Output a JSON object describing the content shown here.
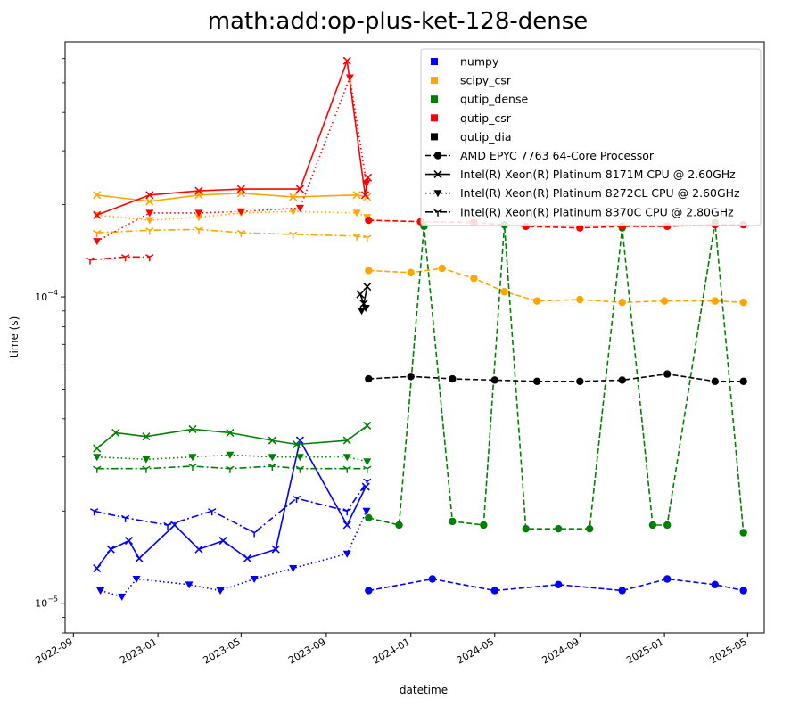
{
  "chart_data": {
    "type": "line",
    "title": "math:add:op-plus-ket-128-dense",
    "xlabel": "datetime",
    "ylabel": "time (s)",
    "y_scale": "log",
    "ylim": [
      8e-06,
      0.00068
    ],
    "xlim": [
      "2022-08-20",
      "2025-05-25"
    ],
    "x_ticks": [
      "2022-09",
      "2023-01",
      "2023-05",
      "2023-09",
      "2024-01",
      "2024-05",
      "2024-09",
      "2025-01",
      "2025-05"
    ],
    "y_ticks": [
      {
        "value": 1e-05,
        "label": "10",
        "exp": "−5"
      },
      {
        "value": 0.0001,
        "label": "10",
        "exp": "−4"
      }
    ],
    "grid": false,
    "legend_position": "top-right",
    "colors": {
      "numpy": "#0000ff",
      "scipy_csr": "#ffa500",
      "qutip_dense": "#008000",
      "qutip_csr": "#ff0000",
      "qutip_dia": "#000000"
    },
    "legend": [
      {
        "label": "numpy",
        "kind": "color",
        "color": "#0000ff"
      },
      {
        "label": "scipy_csr",
        "kind": "color",
        "color": "#ffa500"
      },
      {
        "label": "qutip_dense",
        "kind": "color",
        "color": "#008000"
      },
      {
        "label": "qutip_csr",
        "kind": "color",
        "color": "#ff0000"
      },
      {
        "label": "qutip_dia",
        "kind": "color",
        "color": "#000000"
      },
      {
        "label": "AMD EPYC 7763 64-Core Processor",
        "kind": "style",
        "marker": "o",
        "dash": "6,3"
      },
      {
        "label": "Intel(R) Xeon(R) Platinum 8171M CPU @ 2.60GHz",
        "kind": "style",
        "marker": "x",
        "dash": ""
      },
      {
        "label": "Intel(R) Xeon(R) Platinum 8272CL CPU @ 2.60GHz",
        "kind": "style",
        "marker": "v",
        "dash": "1.5,3"
      },
      {
        "label": "Intel(R) Xeon(R) Platinum 8370C CPU @ 2.80GHz",
        "kind": "style",
        "marker": "1",
        "dash": "8,3,2,3"
      }
    ],
    "series": [
      {
        "library": "numpy",
        "cpu": "Intel(R) Xeon(R) Platinum 8171M CPU @ 2.60GHz",
        "x": [
          "2022-10-05",
          "2022-10-25",
          "2022-11-20",
          "2022-12-05",
          "2023-01-25",
          "2023-03-01",
          "2023-04-05",
          "2023-05-10",
          "2023-06-20",
          "2023-07-25",
          "2023-10-01",
          "2023-10-28"
        ],
        "y": [
          1.3e-05,
          1.5e-05,
          1.6e-05,
          1.4e-05,
          1.8e-05,
          1.5e-05,
          1.6e-05,
          1.4e-05,
          1.5e-05,
          3.4e-05,
          1.8e-05,
          2.4e-05
        ]
      },
      {
        "library": "numpy",
        "cpu": "Intel(R) Xeon(R) Platinum 8272CL CPU @ 2.60GHz",
        "x": [
          "2022-10-10",
          "2022-11-10",
          "2022-12-01",
          "2023-02-15",
          "2023-04-01",
          "2023-05-20",
          "2023-07-15",
          "2023-10-01",
          "2023-10-29"
        ],
        "y": [
          1.1e-05,
          1.05e-05,
          1.2e-05,
          1.15e-05,
          1.1e-05,
          1.2e-05,
          1.3e-05,
          1.45e-05,
          2e-05
        ]
      },
      {
        "library": "numpy",
        "cpu": "Intel(R) Xeon(R) Platinum 8370C CPU @ 2.80GHz",
        "x": [
          "2022-10-01",
          "2022-11-15",
          "2023-01-15",
          "2023-03-20",
          "2023-05-20",
          "2023-07-20",
          "2023-10-01",
          "2023-10-30"
        ],
        "y": [
          2e-05,
          1.9e-05,
          1.8e-05,
          2e-05,
          1.7e-05,
          2.2e-05,
          2e-05,
          2.5e-05
        ]
      },
      {
        "library": "numpy",
        "cpu": "AMD EPYC 7763 64-Core Processor",
        "x": [
          "2023-11-01",
          "2024-02-01",
          "2024-05-01",
          "2024-08-01",
          "2024-11-01",
          "2025-01-05",
          "2025-03-15",
          "2025-04-25"
        ],
        "y": [
          1.1e-05,
          1.2e-05,
          1.1e-05,
          1.15e-05,
          1.1e-05,
          1.2e-05,
          1.15e-05,
          1.1e-05
        ]
      },
      {
        "library": "scipy_csr",
        "cpu": "Intel(R) Xeon(R) Platinum 8171M CPU @ 2.60GHz",
        "x": [
          "2022-10-05",
          "2022-12-20",
          "2023-03-01",
          "2023-05-01",
          "2023-07-15",
          "2023-10-15",
          "2023-10-30"
        ],
        "y": [
          0.000215,
          0.000205,
          0.000215,
          0.000218,
          0.000212,
          0.000215,
          0.000212
        ]
      },
      {
        "library": "scipy_csr",
        "cpu": "Intel(R) Xeon(R) Platinum 8272CL CPU @ 2.60GHz",
        "x": [
          "2022-10-05",
          "2022-12-20",
          "2023-03-01",
          "2023-05-01",
          "2023-07-15",
          "2023-10-15",
          "2023-10-30"
        ],
        "y": [
          0.000185,
          0.000178,
          0.000182,
          0.000188,
          0.00019,
          0.000188,
          0.000182
        ]
      },
      {
        "library": "scipy_csr",
        "cpu": "Intel(R) Xeon(R) Platinum 8370C CPU @ 2.80GHz",
        "x": [
          "2022-10-05",
          "2022-12-20",
          "2023-03-01",
          "2023-05-01",
          "2023-07-15",
          "2023-10-15",
          "2023-10-30"
        ],
        "y": [
          0.000162,
          0.000165,
          0.000166,
          0.000162,
          0.00016,
          0.000158,
          0.000156
        ]
      },
      {
        "library": "scipy_csr",
        "cpu": "AMD EPYC 7763 64-Core Processor",
        "x": [
          "2023-11-01",
          "2024-01-01",
          "2024-02-15",
          "2024-04-01",
          "2024-05-15",
          "2024-07-01",
          "2024-09-01",
          "2024-11-01",
          "2025-01-01",
          "2025-03-15",
          "2025-04-25"
        ],
        "y": [
          0.000122,
          0.00012,
          0.000124,
          0.000115,
          0.000104,
          9.7e-05,
          9.8e-05,
          9.6e-05,
          9.7e-05,
          9.7e-05,
          9.6e-05
        ]
      },
      {
        "library": "qutip_dense",
        "cpu": "Intel(R) Xeon(R) Platinum 8171M CPU @ 2.60GHz",
        "x": [
          "2022-10-05",
          "2022-11-01",
          "2022-12-15",
          "2023-02-20",
          "2023-04-15",
          "2023-06-15",
          "2023-07-20",
          "2023-10-01",
          "2023-10-30"
        ],
        "y": [
          3.2e-05,
          3.6e-05,
          3.5e-05,
          3.7e-05,
          3.6e-05,
          3.4e-05,
          3.3e-05,
          3.4e-05,
          3.8e-05
        ]
      },
      {
        "library": "qutip_dense",
        "cpu": "Intel(R) Xeon(R) Platinum 8272CL CPU @ 2.60GHz",
        "x": [
          "2022-10-05",
          "2022-12-15",
          "2023-02-20",
          "2023-04-15",
          "2023-06-15",
          "2023-07-25",
          "2023-10-01",
          "2023-10-30"
        ],
        "y": [
          3e-05,
          2.95e-05,
          3e-05,
          3.05e-05,
          3e-05,
          3e-05,
          3e-05,
          2.9e-05
        ]
      },
      {
        "library": "qutip_dense",
        "cpu": "Intel(R) Xeon(R) Platinum 8370C CPU @ 2.80GHz",
        "x": [
          "2022-10-05",
          "2022-12-15",
          "2023-02-20",
          "2023-04-15",
          "2023-06-15",
          "2023-07-25",
          "2023-10-01",
          "2023-10-30"
        ],
        "y": [
          2.75e-05,
          2.75e-05,
          2.8e-05,
          2.75e-05,
          2.8e-05,
          2.75e-05,
          2.75e-05,
          2.75e-05
        ]
      },
      {
        "library": "qutip_dense",
        "cpu": "AMD EPYC 7763 64-Core Processor",
        "x": [
          "2023-11-01",
          "2023-12-15",
          "2024-01-20",
          "2024-03-01",
          "2024-04-15",
          "2024-05-15",
          "2024-06-15",
          "2024-08-01",
          "2024-09-15",
          "2024-11-01",
          "2024-12-15",
          "2025-01-05",
          "2025-03-15",
          "2025-04-25"
        ],
        "y": [
          1.9e-05,
          1.8e-05,
          0.00017,
          1.85e-05,
          1.8e-05,
          0.000172,
          1.75e-05,
          1.75e-05,
          1.75e-05,
          0.000168,
          1.8e-05,
          1.8e-05,
          0.000175,
          1.7e-05
        ]
      },
      {
        "library": "qutip_csr",
        "cpu": "Intel(R) Xeon(R) Platinum 8171M CPU @ 2.60GHz",
        "x": [
          "2022-10-05",
          "2022-12-20",
          "2023-03-01",
          "2023-05-01",
          "2023-07-25",
          "2023-10-01",
          "2023-10-27",
          "2023-10-31"
        ],
        "y": [
          0.000185,
          0.000215,
          0.000222,
          0.000225,
          0.000225,
          0.00059,
          0.000215,
          0.000245
        ]
      },
      {
        "library": "qutip_csr",
        "cpu": "Intel(R) Xeon(R) Platinum 8272CL CPU @ 2.60GHz",
        "x": [
          "2022-10-05",
          "2022-12-20",
          "2023-03-01",
          "2023-05-01",
          "2023-07-25",
          "2023-10-05",
          "2023-10-29"
        ],
        "y": [
          0.000152,
          0.000188,
          0.000188,
          0.00019,
          0.000195,
          0.00052,
          0.000235
        ]
      },
      {
        "library": "qutip_csr",
        "cpu": "Intel(R) Xeon(R) Platinum 8370C CPU @ 2.80GHz",
        "x": [
          "2022-09-25",
          "2022-11-15",
          "2022-12-20"
        ],
        "y": [
          0.000132,
          0.000135,
          0.000135
        ]
      },
      {
        "library": "qutip_csr",
        "cpu": "AMD EPYC 7763 64-Core Processor",
        "x": [
          "2023-11-01",
          "2024-01-15",
          "2024-04-01",
          "2024-06-15",
          "2024-09-01",
          "2024-11-01",
          "2025-01-05",
          "2025-03-15",
          "2025-04-25"
        ],
        "y": [
          0.000178,
          0.000176,
          0.000175,
          0.00017,
          0.000168,
          0.00017,
          0.00017,
          0.000172,
          0.000172
        ]
      },
      {
        "library": "qutip_dia",
        "cpu": "Intel(R) Xeon(R) Platinum 8171M CPU @ 2.60GHz",
        "x": [
          "2023-10-20",
          "2023-10-25",
          "2023-10-30"
        ],
        "y": [
          0.000102,
          9.5e-05,
          0.000108
        ]
      },
      {
        "library": "qutip_dia",
        "cpu": "Intel(R) Xeon(R) Platinum 8272CL CPU @ 2.60GHz",
        "x": [
          "2023-10-22",
          "2023-10-28"
        ],
        "y": [
          9e-05,
          9.2e-05
        ]
      },
      {
        "library": "qutip_dia",
        "cpu": "AMD EPYC 7763 64-Core Processor",
        "x": [
          "2023-11-01",
          "2024-01-01",
          "2024-03-01",
          "2024-05-01",
          "2024-07-01",
          "2024-09-01",
          "2024-11-01",
          "2025-01-05",
          "2025-03-15",
          "2025-04-25"
        ],
        "y": [
          5.4e-05,
          5.5e-05,
          5.4e-05,
          5.35e-05,
          5.3e-05,
          5.3e-05,
          5.35e-05,
          5.6e-05,
          5.3e-05,
          5.3e-05
        ]
      }
    ]
  }
}
